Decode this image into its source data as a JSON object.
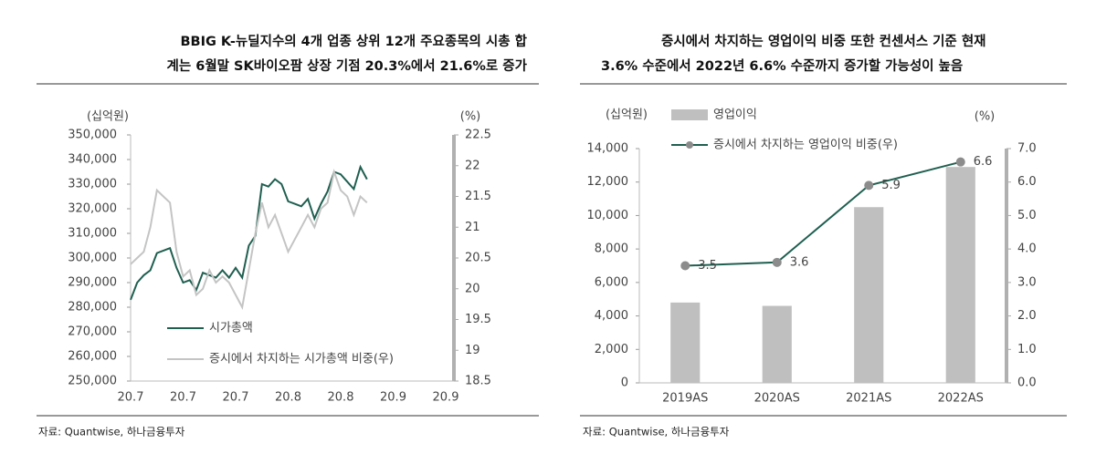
{
  "chart_data": [
    {
      "type": "line",
      "title": [
        "BBIG K-뉴딜지수의 4개 업종 상위 12개 주요종목의 시총 합",
        "계는 6월말 SK바이오팜 상장 기점 20.3%에서 21.6%로 증가"
      ],
      "y_unit": "(십억원)",
      "y2_unit": "(%)",
      "categories": [
        "20.7",
        null,
        null,
        null,
        null,
        null,
        null,
        null,
        "20.7",
        null,
        null,
        null,
        null,
        null,
        null,
        null,
        "20.7",
        null,
        null,
        null,
        null,
        null,
        null,
        null,
        "20.8",
        null,
        null,
        null,
        null,
        null,
        null,
        null,
        "20.8",
        null,
        null,
        null,
        null,
        null,
        null,
        null,
        "20.9",
        null,
        null,
        null,
        null,
        null,
        null,
        null,
        "20.9"
      ],
      "series": [
        {
          "name": "시가총액",
          "color": "#1f5f4f",
          "values": [
            283000,
            290000,
            293000,
            295000,
            302000,
            303000,
            304000,
            296000,
            290000,
            291000,
            287000,
            294000,
            293000,
            292000,
            295000,
            292000,
            296000,
            292000,
            305000,
            309000,
            330000,
            329000,
            332000,
            330000,
            323000,
            322000,
            321000,
            324000,
            316000,
            322000,
            327000,
            335000,
            334000,
            331000,
            328000,
            337000,
            332000,
            null,
            null,
            null,
            null,
            null,
            null,
            null,
            null,
            null,
            null,
            null,
            null
          ]
        },
        {
          "name": "증시에서 차지하는 시가총액 비중(우)",
          "color": "#c4c4c4",
          "axis": "y2",
          "values": [
            20.4,
            20.5,
            20.6,
            21.0,
            21.6,
            21.5,
            21.4,
            20.6,
            20.2,
            20.3,
            19.9,
            20.0,
            20.3,
            20.1,
            20.2,
            20.1,
            19.9,
            19.7,
            20.3,
            20.9,
            21.4,
            21.0,
            21.2,
            20.9,
            20.6,
            20.8,
            21.0,
            21.2,
            21.0,
            21.3,
            21.4,
            21.9,
            21.6,
            21.5,
            21.2,
            21.5,
            21.4,
            null,
            null,
            null,
            null,
            null,
            null,
            null,
            null,
            null,
            null,
            null,
            null
          ]
        }
      ],
      "ylim": [
        250000,
        350000
      ],
      "yticks": [
        {
          "value": 250000,
          "label": "250,000"
        },
        {
          "value": 260000,
          "label": "260,000"
        },
        {
          "value": 270000,
          "label": "270,000"
        },
        {
          "value": 280000,
          "label": "280,000"
        },
        {
          "value": 290000,
          "label": "290,000"
        },
        {
          "value": 300000,
          "label": "300,000"
        },
        {
          "value": 310000,
          "label": "310,000"
        },
        {
          "value": 320000,
          "label": "320,000"
        },
        {
          "value": 330000,
          "label": "330,000"
        },
        {
          "value": 340000,
          "label": "340,000"
        },
        {
          "value": 350000,
          "label": "350,000"
        }
      ],
      "y2lim": [
        18.5,
        22.5
      ],
      "y2ticks": [
        18.5,
        19,
        19.5,
        20,
        20.5,
        21,
        21.5,
        22,
        22.5
      ],
      "source": "자료: Quantwise, 하나금융투자"
    },
    {
      "type": "bar",
      "title": [
        "증시에서 차지하는 영업이익 비중 또한 컨센서스 기준 현재",
        "3.6% 수준에서 2022년 6.6% 수준까지 증가할 가능성이 높음"
      ],
      "y_unit": "(십억원)",
      "y2_unit": "(%)",
      "categories": [
        "2019AS",
        "2020AS",
        "2021AS",
        "2022AS"
      ],
      "series": [
        {
          "name": "영업이익",
          "color": "#bfbfbf",
          "values": [
            4800,
            4600,
            10500,
            12900
          ]
        },
        {
          "name": "증시에서 차지하는 영업이익 비중(우)",
          "type": "line",
          "color": "#1f5f4f",
          "marker_color": "#8c8c8c",
          "axis": "y2",
          "values": [
            3.5,
            3.6,
            5.9,
            6.6
          ]
        }
      ],
      "ylim": [
        0,
        14000
      ],
      "yticks": [
        0,
        {
          "value": 2000,
          "label": "2,000"
        },
        {
          "value": 4000,
          "label": "4,000"
        },
        {
          "value": 6000,
          "label": "6,000"
        },
        {
          "value": 8000,
          "label": "8,000"
        },
        {
          "value": 10000,
          "label": "10,000"
        },
        {
          "value": 12000,
          "label": "12,000"
        },
        {
          "value": 14000,
          "label": "14,000"
        }
      ],
      "y2lim": [
        0,
        7
      ],
      "y2ticks": [
        {
          "value": 0,
          "label": "0.0"
        },
        {
          "value": 1,
          "label": "1.0"
        },
        {
          "value": 2,
          "label": "2.0"
        },
        {
          "value": 3,
          "label": "3.0"
        },
        {
          "value": 4,
          "label": "4.0"
        },
        {
          "value": 5,
          "label": "5.0"
        },
        {
          "value": 6,
          "label": "6.0"
        },
        {
          "value": 7,
          "label": "7.0"
        }
      ],
      "source": "자료: Quantwise, 하나금융투자"
    }
  ]
}
